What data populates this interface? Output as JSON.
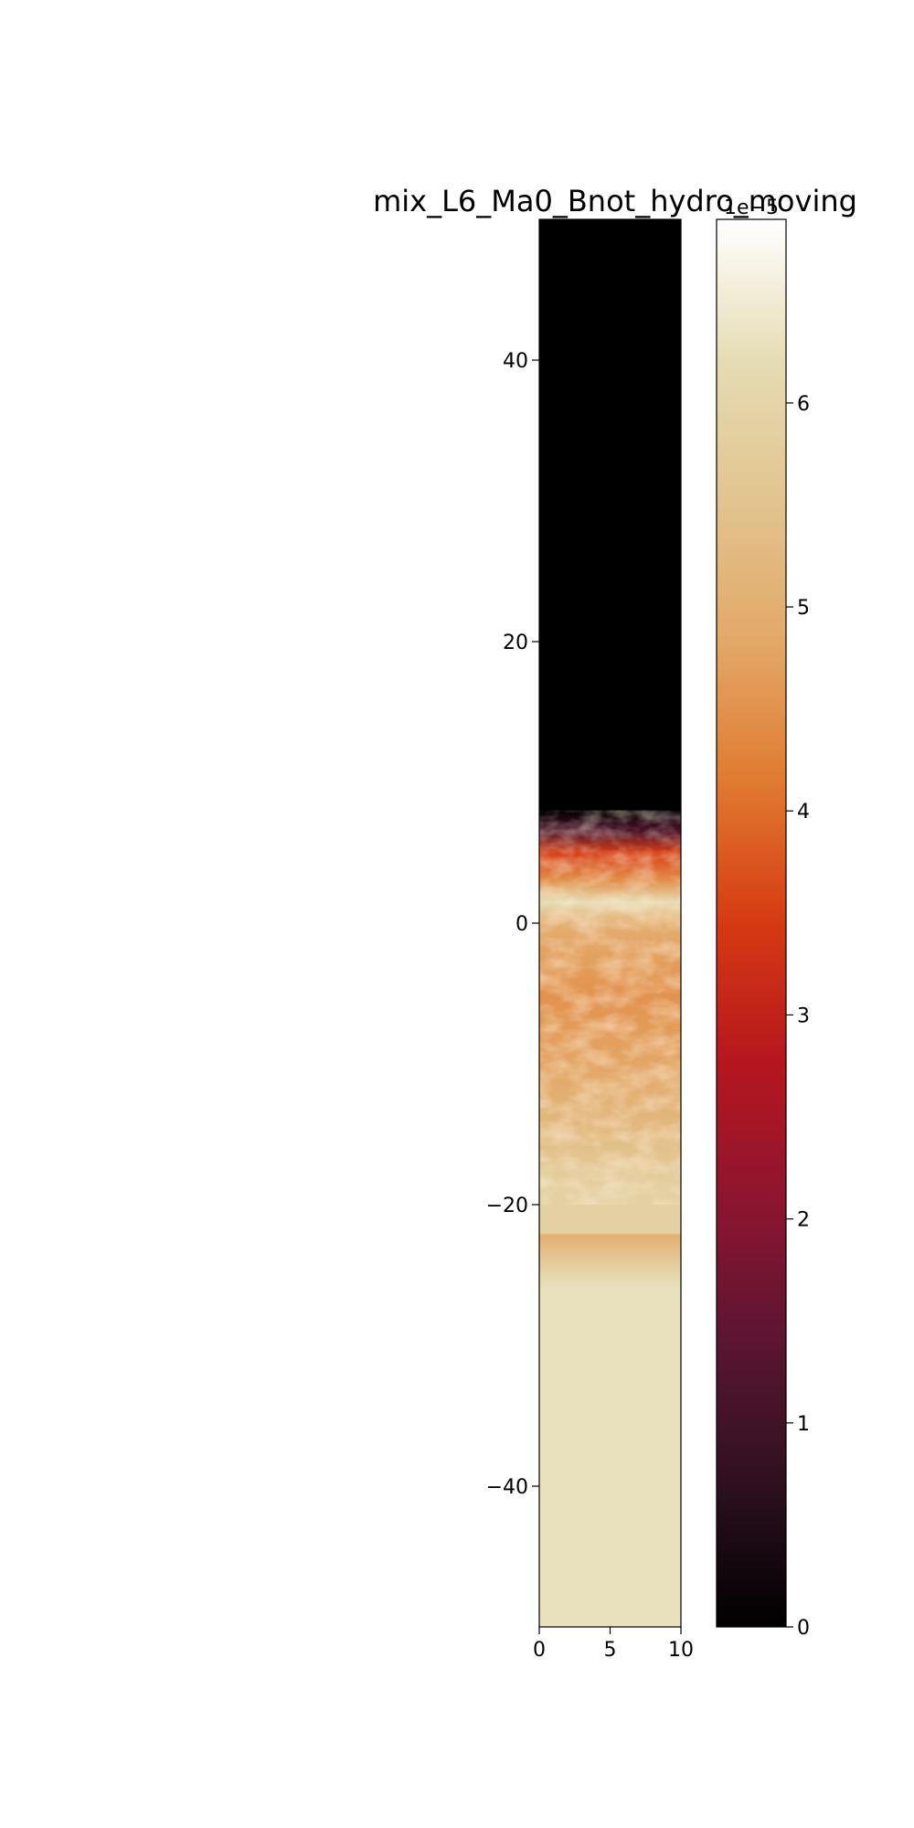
{
  "chart_data": {
    "type": "heatmap",
    "title": "mix_L6_Ma0_Bnot_hydro_moving",
    "xlabel": "",
    "ylabel": "",
    "xlim": [
      0,
      10
    ],
    "ylim": [
      -50,
      50
    ],
    "x_ticks": [
      0,
      5,
      10
    ],
    "x_tick_labels": [
      "0",
      "5",
      "10"
    ],
    "y_ticks": [
      -40,
      -20,
      0,
      20,
      40
    ],
    "y_tick_labels": [
      "−40",
      "−20",
      "0",
      "20",
      "40"
    ],
    "colormap": "inferno-like (black → dark red → orange → cream → white)",
    "colorbar": {
      "min": 0,
      "max": 6.9,
      "ticks": [
        0,
        1,
        2,
        3,
        4,
        5,
        6
      ],
      "tick_labels": [
        "0",
        "1",
        "2",
        "3",
        "4",
        "5",
        "6"
      ],
      "offset_label": "1e−5",
      "colors": [
        "#000000",
        "#2d1020",
        "#5a1532",
        "#8c1530",
        "#b5161e",
        "#d63a12",
        "#e07a30",
        "#e3a868",
        "#e2c48e",
        "#e6dcb4",
        "#ffffff"
      ]
    },
    "profile": [
      {
        "y": 50,
        "value": 0.0
      },
      {
        "y": 8,
        "value": 0.0
      },
      {
        "y": 6.5,
        "value": 1.2
      },
      {
        "y": 5,
        "value": 3.5
      },
      {
        "y": 3,
        "value": 4.5
      },
      {
        "y": 1.5,
        "value": 6.2
      },
      {
        "y": 0,
        "value": 5.0
      },
      {
        "y": -5,
        "value": 4.5
      },
      {
        "y": -10,
        "value": 4.8
      },
      {
        "y": -15,
        "value": 5.3
      },
      {
        "y": -19,
        "value": 5.9
      },
      {
        "y": -22,
        "value": 5.9
      },
      {
        "y": -22.2,
        "value": 5.0
      },
      {
        "y": -24,
        "value": 5.7
      },
      {
        "y": -26,
        "value": 6.3
      },
      {
        "y": -50,
        "value": 6.3
      }
    ],
    "grid": false
  }
}
